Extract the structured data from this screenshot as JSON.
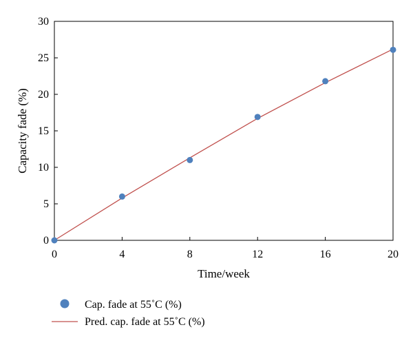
{
  "chart_data": {
    "type": "line",
    "title": "",
    "xlabel": "Time/week",
    "ylabel": "Capacity fade (%)",
    "xlim": [
      0,
      20
    ],
    "ylim": [
      0,
      30
    ],
    "x_ticks": [
      0,
      4,
      8,
      12,
      16,
      20
    ],
    "y_ticks": [
      0,
      5,
      10,
      15,
      20,
      25,
      30
    ],
    "grid": false,
    "legend_position": "bottom-left, below plot",
    "series": [
      {
        "name": "Cap. fade at 55˚C (%)",
        "style": "markers",
        "color": "#4f81bd",
        "x": [
          0,
          4,
          8,
          12,
          16,
          20
        ],
        "y": [
          0.0,
          6.0,
          11.0,
          16.9,
          21.8,
          26.1
        ]
      },
      {
        "name": "Pred. cap. fade at 55˚C (%)",
        "style": "line",
        "color": "#c0504d",
        "x": [
          0,
          4,
          8,
          12,
          16,
          20
        ],
        "y": [
          0.0,
          5.8,
          11.3,
          16.7,
          21.6,
          26.2
        ]
      }
    ]
  }
}
